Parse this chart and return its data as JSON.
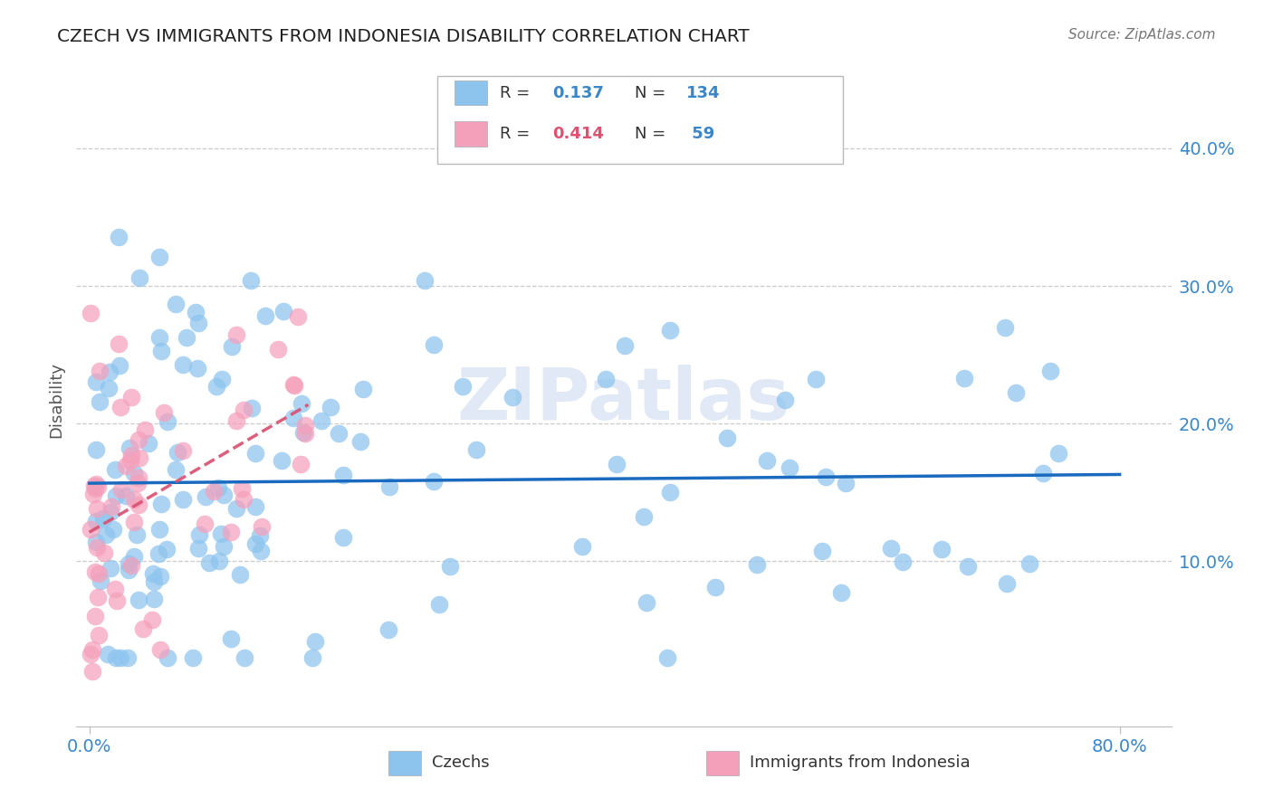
{
  "title": "CZECH VS IMMIGRANTS FROM INDONESIA DISABILITY CORRELATION CHART",
  "source": "Source: ZipAtlas.com",
  "ylabel": "Disability",
  "xlim": [
    0.0,
    0.82
  ],
  "ylim": [
    -0.02,
    0.455
  ],
  "ytick_values": [
    0.1,
    0.2,
    0.3,
    0.4
  ],
  "ytick_labels": [
    "10.0%",
    "20.0%",
    "30.0%",
    "40.0%"
  ],
  "xtick_values": [
    0.0,
    0.8
  ],
  "xtick_labels": [
    "0.0%",
    "80.0%"
  ],
  "R_czech": 0.137,
  "N_czech": 134,
  "R_indonesia": 0.414,
  "N_indonesia": 59,
  "color_czech": "#8dc4ee",
  "color_indonesia": "#f5a0bb",
  "trendline_czech": "#1a6bbf",
  "trendline_indonesia": "#d94f70",
  "watermark": "ZIPatlas"
}
